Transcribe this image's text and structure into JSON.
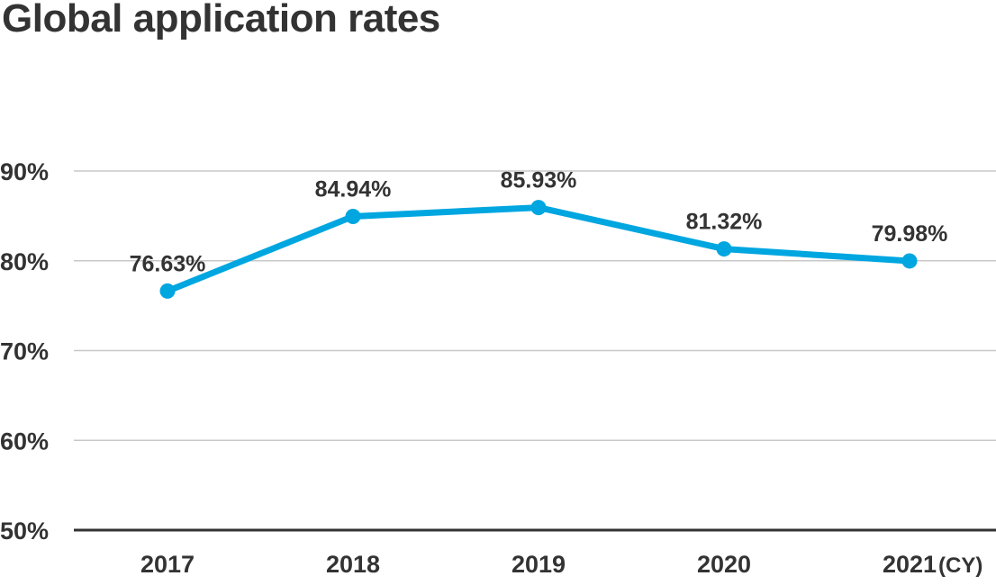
{
  "chart_data": {
    "type": "line",
    "title": "Global application rates",
    "x_unit": "(CY)",
    "categories": [
      "2017",
      "2018",
      "2019",
      "2020",
      "2021"
    ],
    "series": [
      {
        "values": [
          76.63,
          84.94,
          85.93,
          81.32,
          79.98
        ],
        "value_labels": [
          "76.63%",
          "84.94%",
          "85.93%",
          "81.32%",
          "79.98%"
        ],
        "color": "#00A6E0"
      }
    ],
    "y_ticks": [
      "90%",
      "80%",
      "70%",
      "60%",
      "50%"
    ],
    "ylim": [
      50,
      90
    ],
    "grid": true,
    "colors": {
      "line": "#00A6E0",
      "text": "#333333",
      "grid": "#c8c8c8",
      "axis": "#333333"
    }
  }
}
